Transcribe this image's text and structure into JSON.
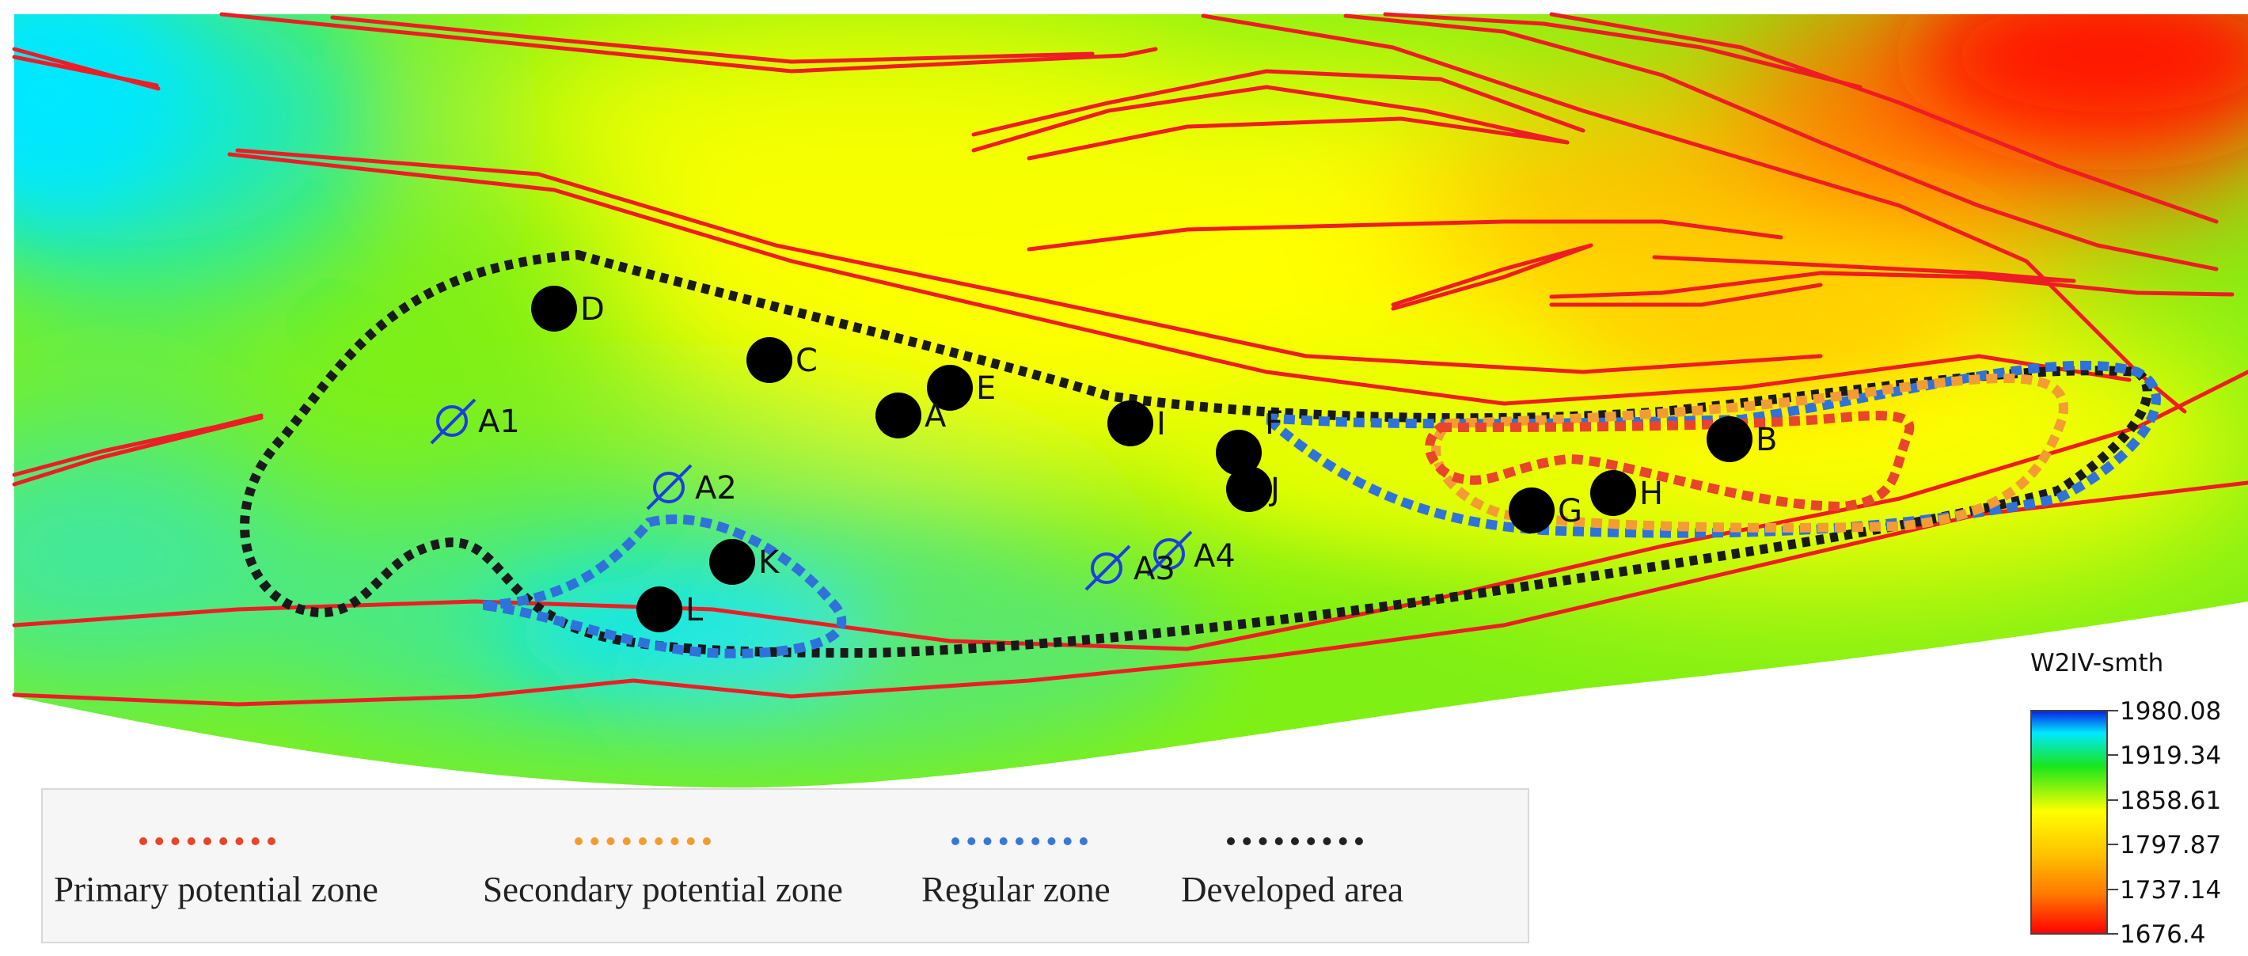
{
  "map": {
    "wells": [
      {
        "label": "D"
      },
      {
        "label": "C"
      },
      {
        "label": "E"
      },
      {
        "label": "A"
      },
      {
        "label": "I"
      },
      {
        "label": "F"
      },
      {
        "label": "J"
      },
      {
        "label": "B"
      },
      {
        "label": "H"
      },
      {
        "label": "G"
      },
      {
        "label": "K"
      },
      {
        "label": "L"
      }
    ],
    "injectors": [
      {
        "label": "A1"
      },
      {
        "label": "A2"
      },
      {
        "label": "A3"
      },
      {
        "label": "A4"
      }
    ],
    "fault_color": "#ee1c24",
    "well_color": "#000000",
    "injector_color": "#1a3fe0"
  },
  "colorbar": {
    "title": "W2IV-smth",
    "ticks": [
      "1980.08",
      "1919.34",
      "1858.61",
      "1797.87",
      "1737.14",
      "1676.4"
    ],
    "colors": [
      "#0a1ee6",
      "#00e8ff",
      "#19e61c",
      "#ffff00",
      "#ff9a00",
      "#ff0000"
    ]
  },
  "legend": {
    "items": [
      {
        "label": "Primary potential zone",
        "color": "#e8452c"
      },
      {
        "label": "Secondary potential zone",
        "color": "#f39c34"
      },
      {
        "label": "Regular zone",
        "color": "#3a78d8"
      },
      {
        "label": "Developed area",
        "color": "#222222"
      }
    ]
  }
}
